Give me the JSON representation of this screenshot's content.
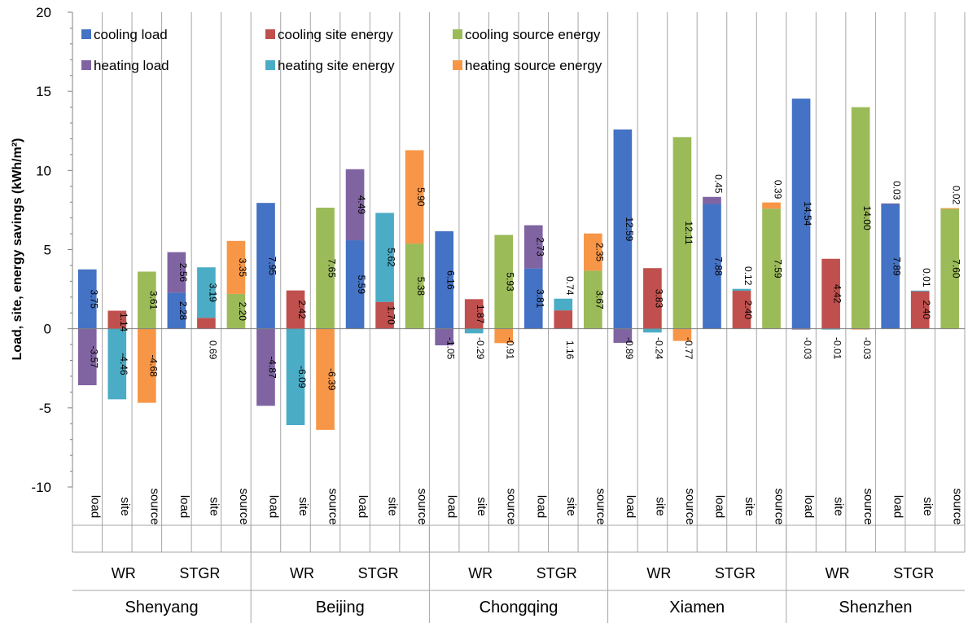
{
  "chart_data": {
    "type": "bar",
    "ylabel": "Load, site, energy savings (kWh/m²)",
    "ylim": [
      -10,
      20
    ],
    "yticks": [
      -10,
      -5,
      0,
      5,
      10,
      15,
      20
    ],
    "grid": false,
    "legend_position": "top-left",
    "colors": {
      "cooling_load": "#4472C4",
      "cooling_site": "#C0504D",
      "cooling_source": "#9BBB59",
      "heating_load": "#8064A2",
      "heating_site": "#4BACC6",
      "heating_source": "#F79646"
    },
    "legend": [
      {
        "key": "cooling_load",
        "label": "cooling load"
      },
      {
        "key": "cooling_site",
        "label": "cooling site energy"
      },
      {
        "key": "cooling_source",
        "label": "cooling source energy"
      },
      {
        "key": "heating_load",
        "label": "heating load"
      },
      {
        "key": "heating_site",
        "label": "heating site energy"
      },
      {
        "key": "heating_source",
        "label": "heating source energy"
      }
    ],
    "cities": [
      {
        "name": "Shenyang",
        "groups": [
          {
            "name": "WR",
            "bars": [
              {
                "label": "load",
                "cooling": 3.75,
                "heating": -3.57,
                "cooling_label": "3.75",
                "heating_label": "-3.57"
              },
              {
                "label": "site",
                "cooling": 1.14,
                "heating": -4.46,
                "cooling_label": "1.14",
                "heating_label": "-4.46"
              },
              {
                "label": "source",
                "cooling": 3.61,
                "heating": -4.68,
                "cooling_label": "3.61",
                "heating_label": "-4.68"
              }
            ]
          },
          {
            "name": "STGR",
            "bars": [
              {
                "label": "load",
                "cooling": 2.28,
                "heating": 2.56,
                "cooling_label": "2.28",
                "heating_label": "2.56"
              },
              {
                "label": "site",
                "cooling": 0.69,
                "heating": 3.19,
                "cooling_label": "0.69",
                "heating_label": "3.19"
              },
              {
                "label": "source",
                "cooling": 2.2,
                "heating": 3.35,
                "cooling_label": "2.20",
                "heating_label": "3.35"
              }
            ]
          }
        ]
      },
      {
        "name": "Beijing",
        "groups": [
          {
            "name": "WR",
            "bars": [
              {
                "label": "load",
                "cooling": 7.95,
                "heating": -4.87,
                "cooling_label": "7.95",
                "heating_label": "-4.87"
              },
              {
                "label": "site",
                "cooling": 2.42,
                "heating": -6.09,
                "cooling_label": "2.42",
                "heating_label": "-6.09"
              },
              {
                "label": "source",
                "cooling": 7.65,
                "heating": -6.39,
                "cooling_label": "7.65",
                "heating_label": "-6.39"
              }
            ]
          },
          {
            "name": "STGR",
            "bars": [
              {
                "label": "load",
                "cooling": 5.59,
                "heating": 4.49,
                "cooling_label": "5.59",
                "heating_label": "4.49"
              },
              {
                "label": "site",
                "cooling": 1.7,
                "heating": 5.62,
                "cooling_label": "1.70",
                "heating_label": "5.62"
              },
              {
                "label": "source",
                "cooling": 5.38,
                "heating": 5.9,
                "cooling_label": "5.38",
                "heating_label": "5.90"
              }
            ]
          }
        ]
      },
      {
        "name": "Chongqing",
        "groups": [
          {
            "name": "WR",
            "bars": [
              {
                "label": "load",
                "cooling": 6.16,
                "heating": -1.05,
                "cooling_label": "6.16",
                "heating_label": "-1.05"
              },
              {
                "label": "site",
                "cooling": 1.87,
                "heating": -0.29,
                "cooling_label": "1.87",
                "heating_label": "-0.29"
              },
              {
                "label": "source",
                "cooling": 5.93,
                "heating": -0.91,
                "cooling_label": "5.93",
                "heating_label": "-0.91"
              }
            ]
          },
          {
            "name": "STGR",
            "bars": [
              {
                "label": "load",
                "cooling": 3.81,
                "heating": 2.73,
                "cooling_label": "3.81",
                "heating_label": "2.73"
              },
              {
                "label": "site",
                "cooling": 1.16,
                "heating": 0.74,
                "cooling_label": "1.16",
                "heating_label": "0.74"
              },
              {
                "label": "source",
                "cooling": 3.67,
                "heating": 2.35,
                "cooling_label": "3.67",
                "heating_label": "2.35"
              }
            ]
          }
        ]
      },
      {
        "name": "Xiamen",
        "groups": [
          {
            "name": "WR",
            "bars": [
              {
                "label": "load",
                "cooling": 12.59,
                "heating": -0.89,
                "cooling_label": "12.59",
                "heating_label": "-0.89"
              },
              {
                "label": "site",
                "cooling": 3.83,
                "heating": -0.24,
                "cooling_label": "3.83",
                "heating_label": "-0.24"
              },
              {
                "label": "source",
                "cooling": 12.11,
                "heating": -0.77,
                "cooling_label": "12.11",
                "heating_label": "-0.77"
              }
            ]
          },
          {
            "name": "STGR",
            "bars": [
              {
                "label": "load",
                "cooling": 7.88,
                "heating": 0.45,
                "cooling_label": "7.88",
                "heating_label": "0.45"
              },
              {
                "label": "site",
                "cooling": 2.4,
                "heating": 0.12,
                "cooling_label": "2.40",
                "heating_label": "0.12"
              },
              {
                "label": "source",
                "cooling": 7.59,
                "heating": 0.39,
                "cooling_label": "7.59",
                "heating_label": "0.39"
              }
            ]
          }
        ]
      },
      {
        "name": "Shenzhen",
        "groups": [
          {
            "name": "WR",
            "bars": [
              {
                "label": "load",
                "cooling": 14.54,
                "heating": -0.03,
                "cooling_label": "14.54",
                "heating_label": "-0.03"
              },
              {
                "label": "site",
                "cooling": 4.42,
                "heating": -0.01,
                "cooling_label": "4.42",
                "heating_label": "-0.01"
              },
              {
                "label": "source",
                "cooling": 14.0,
                "heating": -0.03,
                "cooling_label": "14.00",
                "heating_label": "-0.03"
              }
            ]
          },
          {
            "name": "STGR",
            "bars": [
              {
                "label": "load",
                "cooling": 7.89,
                "heating": 0.03,
                "cooling_label": "7.89",
                "heating_label": "0.03"
              },
              {
                "label": "site",
                "cooling": 2.4,
                "heating": 0.01,
                "cooling_label": "2.40",
                "heating_label": "0.01"
              },
              {
                "label": "source",
                "cooling": 7.6,
                "heating": 0.02,
                "cooling_label": "7.60",
                "heating_label": "0.02"
              }
            ]
          }
        ]
      }
    ]
  }
}
